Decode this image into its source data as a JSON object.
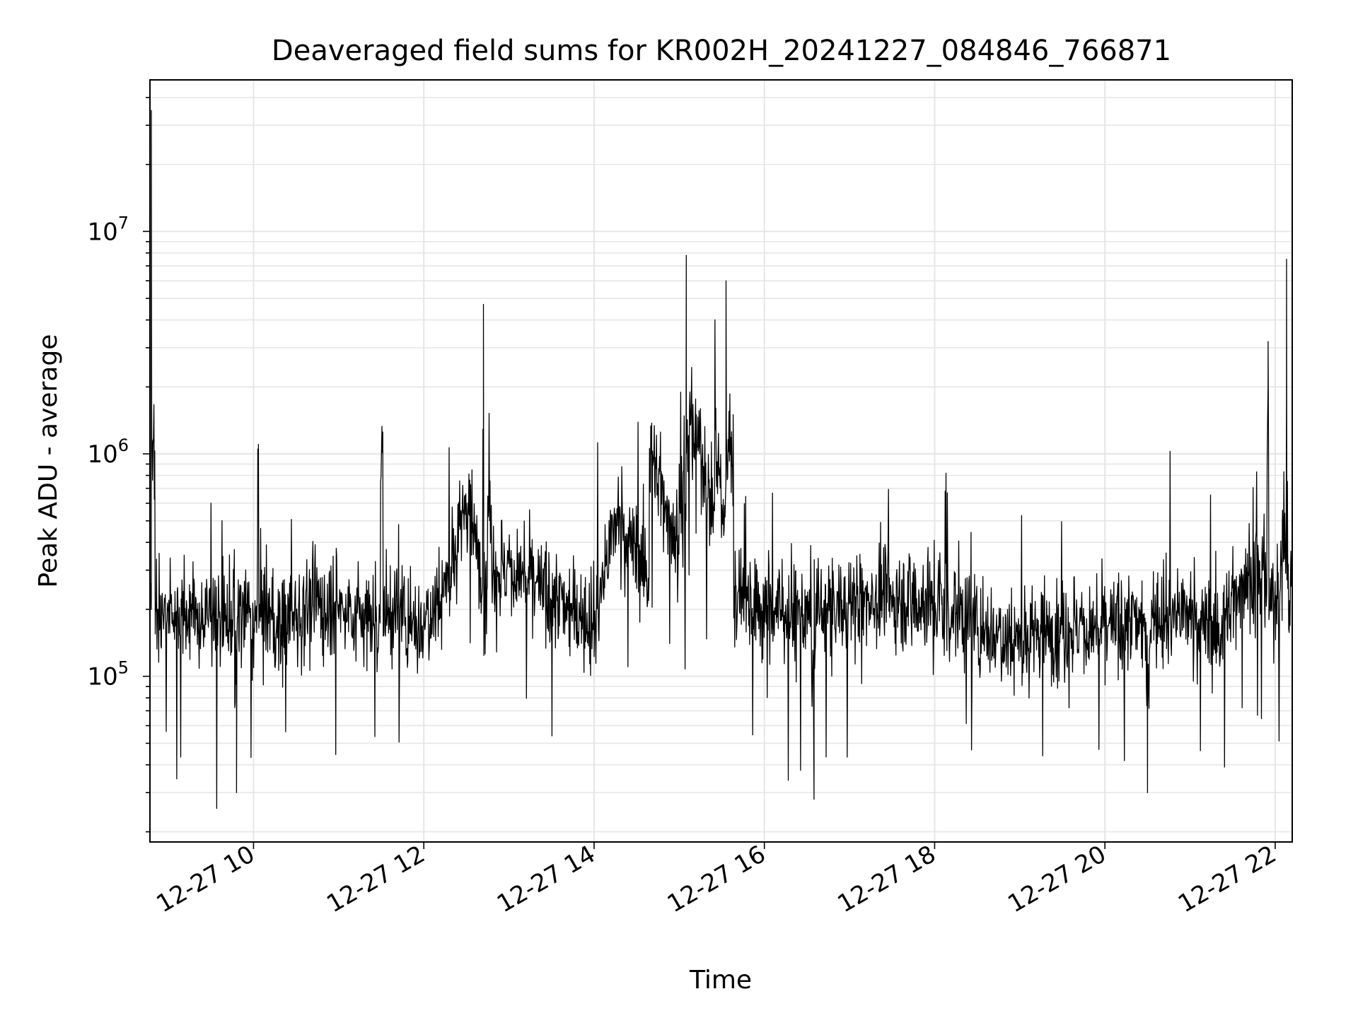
{
  "chart_data": {
    "type": "line",
    "title": "Deaveraged field sums for KR002H_20241227_084846_766871",
    "xlabel": "Time",
    "ylabel": "Peak ADU - average",
    "y_scale": "log",
    "ylim": [
      18000,
      48000000
    ],
    "xlim": [
      "12-27 08:47",
      "12-27 22:12"
    ],
    "x_ticks": [
      "12-27 10",
      "12-27 12",
      "12-27 14",
      "12-27 16",
      "12-27 18",
      "12-27 20",
      "12-27 22"
    ],
    "x_tick_hours": [
      10,
      12,
      14,
      16,
      18,
      20,
      22
    ],
    "y_ticks": [
      {
        "base": "10",
        "exp": "5",
        "value": 100000
      },
      {
        "base": "10",
        "exp": "6",
        "value": 1000000
      },
      {
        "base": "10",
        "exp": "7",
        "value": 10000000
      }
    ],
    "grid": true,
    "legend": "none",
    "line_color": "#000000",
    "grid_color": "#e6e6e6",
    "series": [
      {
        "time": [
          "12-27 08:47",
          "12-27 08:48",
          "12-27 08:50",
          "12-27 09:00",
          "12-27 09:20",
          "12-27 09:48",
          "12-27 09:58",
          "12-27 10:03",
          "12-27 10:15",
          "12-27 10:30",
          "12-27 11:00",
          "12-27 11:20",
          "12-27 11:30",
          "12-27 11:55",
          "12-27 12:15",
          "12-27 12:30",
          "12-27 12:42",
          "12-27 12:45",
          "12-27 12:50",
          "12-27 13:05",
          "12-27 13:30",
          "12-27 13:45",
          "12-27 14:00",
          "12-27 14:15",
          "12-27 14:40",
          "12-27 15:00",
          "12-27 15:05",
          "12-27 15:12",
          "12-27 15:25",
          "12-27 15:33",
          "12-27 15:38",
          "12-27 15:42",
          "12-27 16:00",
          "12-27 16:35",
          "12-27 17:00",
          "12-27 17:30",
          "12-27 18:05",
          "12-27 18:30",
          "12-27 19:00",
          "12-27 19:30",
          "12-27 20:00",
          "12-27 20:30",
          "12-27 21:00",
          "12-27 21:20",
          "12-27 21:40",
          "12-27 21:55",
          "12-27 22:05",
          "12-27 22:08",
          "12-27 22:12"
        ],
        "values": [
          230000,
          35000000,
          900000,
          200000,
          180000,
          30000,
          160000,
          1050000,
          150000,
          200000,
          210000,
          180000,
          900000,
          160000,
          260000,
          600000,
          4700000,
          600000,
          300000,
          300000,
          220000,
          200000,
          180000,
          500000,
          1000000,
          900000,
          7800000,
          1500000,
          1300000,
          6000000,
          1500000,
          250000,
          200000,
          28000,
          220000,
          230000,
          210000,
          170000,
          150000,
          170000,
          160000,
          30000,
          180000,
          160000,
          300000,
          3200000,
          500000,
          7500000,
          500000
        ]
      }
    ]
  }
}
